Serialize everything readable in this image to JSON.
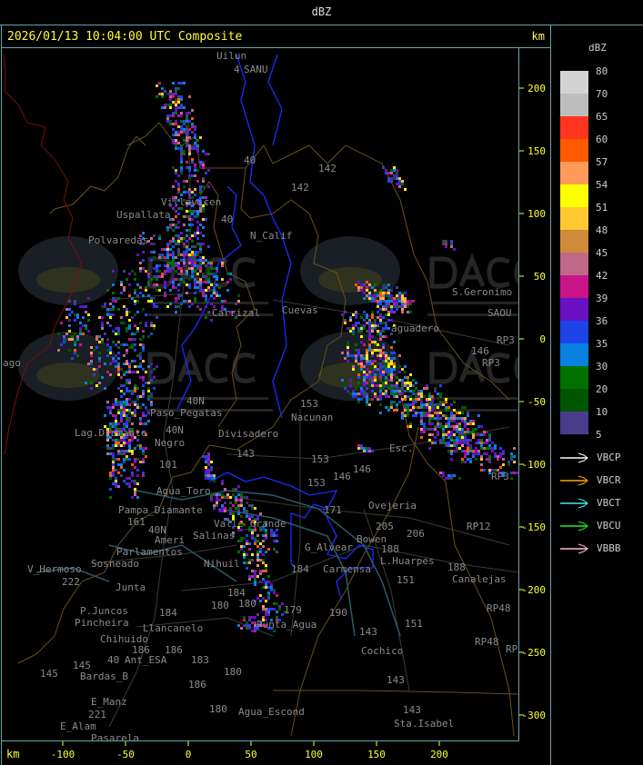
{
  "window": {
    "title": "dBZ"
  },
  "header": {
    "timestamp": "2026/01/13 10:04:00 UTC Composite",
    "unit": "km"
  },
  "axes": {
    "x_unit": "km",
    "x_ticks": [
      "-100",
      "-50",
      "0",
      "50",
      "100",
      "150",
      "200"
    ],
    "y_ticks": [
      "200",
      "150",
      "100",
      "50",
      "0",
      "-50",
      "-100",
      "-150",
      "-200",
      "-250",
      "-300"
    ]
  },
  "legend": {
    "unit": "dBZ",
    "levels": [
      {
        "label": "80",
        "color": "#d3d3d3"
      },
      {
        "label": "70",
        "color": "#bdbdbd"
      },
      {
        "label": "65",
        "color": "#ff3520"
      },
      {
        "label": "60",
        "color": "#ff5a00"
      },
      {
        "label": "57",
        "color": "#ff9a5a"
      },
      {
        "label": "54",
        "color": "#ffff00"
      },
      {
        "label": "51",
        "color": "#ffc830"
      },
      {
        "label": "48",
        "color": "#d08a3c"
      },
      {
        "label": "45",
        "color": "#c06888"
      },
      {
        "label": "42",
        "color": "#c81488"
      },
      {
        "label": "39",
        "color": "#6a10c4"
      },
      {
        "label": "36",
        "color": "#1e44e8"
      },
      {
        "label": "35",
        "color": "#0a80e0"
      },
      {
        "label": "30",
        "color": "#007000"
      },
      {
        "label": "20",
        "color": "#005600"
      },
      {
        "label": "10",
        "color": "#4a3c8c"
      },
      {
        "label": "5",
        "color": ""
      }
    ],
    "radars": [
      {
        "name": "VBCP",
        "color": "#ffffff"
      },
      {
        "name": "VBCR",
        "color": "#ffa500"
      },
      {
        "name": "VBCT",
        "color": "#40f0f0"
      },
      {
        "name": "VBCU",
        "color": "#20f020"
      },
      {
        "name": "VBBB",
        "color": "#ffc0cb"
      }
    ]
  },
  "watermark": {
    "logo_text": "DACC",
    "subtitle_1": "Dirección de Agricultura",
    "subtitle_2": "y Contingencias Climáticas"
  },
  "map_labels": [
    "Uilun",
    "SANU",
    "4",
    "142",
    "142",
    "40",
    "40",
    "Villavicen",
    "Uspallata",
    "Polvaredas",
    "N_Calif",
    "Cuevas",
    "Carrizal",
    "S.Geronimo",
    "SAOU",
    "aguadero",
    "RP3",
    "RP3",
    "146",
    "153",
    "Nacunan",
    "Esc.",
    "146",
    "153",
    "153",
    "146",
    "171",
    "Ovejeria",
    "205",
    "206",
    "RP12",
    "L.Huarpes",
    "188",
    "151",
    "188",
    "Canalejas",
    "Carmensa",
    "RP48",
    "RP48",
    "RP",
    "143",
    "151",
    "Cochico",
    "143",
    "143",
    "Sta.Isabel",
    "190",
    "179",
    "Punta_Agua",
    "184",
    "180",
    "184",
    "Nihuil",
    "Salinas",
    "Valle_Grande",
    "Divisadero",
    "143",
    "Agua_Toro",
    "Pampa_Diamante",
    "Parlamentos",
    "Sosneado",
    "Ameri",
    "40N",
    "40N",
    "161",
    "101",
    "Negro",
    "Lag.Diamante",
    "Paso_Pegatas",
    "V_Hermoso",
    "222",
    "Junta",
    "P.Juncos",
    "Pincheira",
    "Llancanelo",
    "184",
    "Chihuido",
    "186",
    "186",
    "183",
    "40",
    "Ant_ESA",
    "145",
    "Bardas_B",
    "145",
    "180",
    "186",
    "E_Manz",
    "221",
    "E_Alam",
    "Pasarela",
    "180",
    "Agua_Escond",
    "ago",
    "G_Alvear",
    "Bowen",
    "RP3",
    "40N",
    "180"
  ]
}
